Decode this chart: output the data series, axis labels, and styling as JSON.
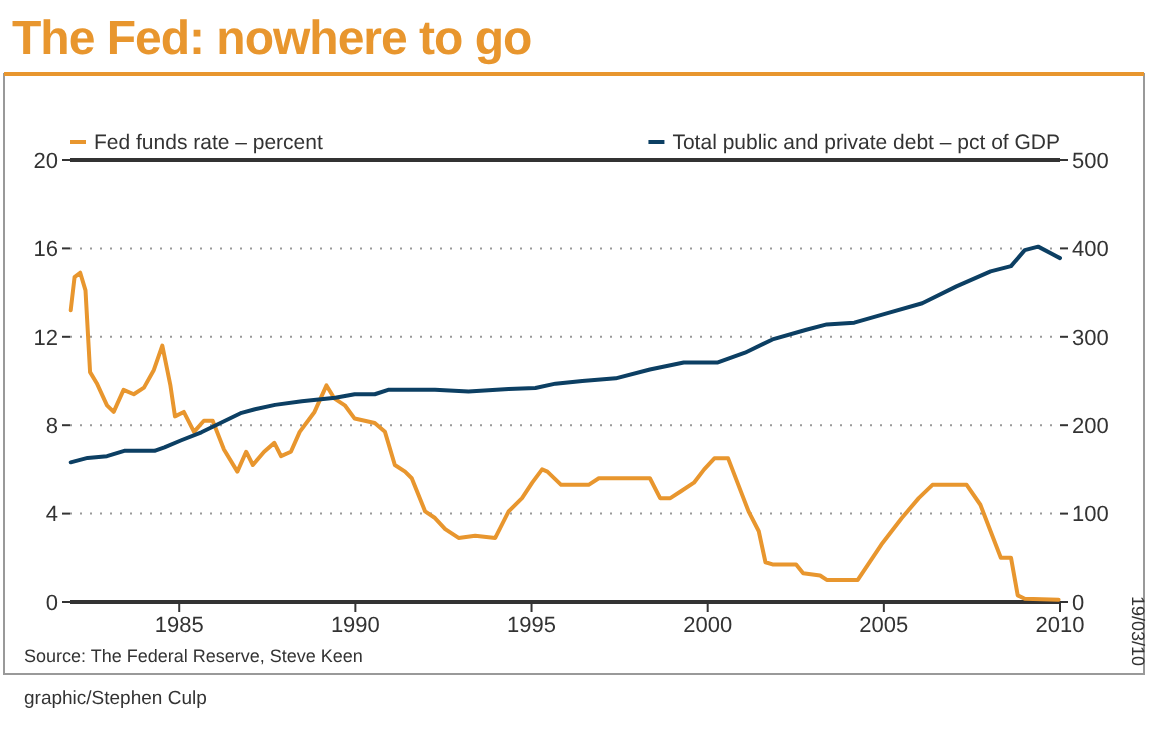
{
  "chart_data": {
    "type": "line",
    "title": "The Fed: nowhere to go",
    "xlim": [
      1981.9,
      2010
    ],
    "xticks": [
      1985,
      1990,
      1995,
      2000,
      2005,
      2010
    ],
    "ylim": [
      0,
      20
    ],
    "yticks": [
      0,
      4,
      8,
      12,
      16,
      20
    ],
    "y2lim": [
      0,
      500
    ],
    "y2ticks": [
      0,
      100,
      200,
      300,
      400,
      500
    ],
    "grid": "y",
    "legend": "top",
    "line_style": "solid",
    "marker": "none",
    "annotations": [
      "Source: The Federal Reserve, Steve Keen",
      "graphic/Stephen Culp",
      "19/03/10"
    ],
    "series": [
      {
        "name": "Fed funds rate – percent",
        "color": "#e8962e",
        "x": [
          1981.92,
          1982.03,
          1982.19,
          1982.34,
          1982.47,
          1982.66,
          1982.95,
          1983.14,
          1983.42,
          1983.71,
          1984.0,
          1984.28,
          1984.52,
          1984.75,
          1984.88,
          1985.13,
          1985.42,
          1985.7,
          1985.95,
          1986.27,
          1986.65,
          1986.9,
          1987.09,
          1987.41,
          1987.7,
          1987.89,
          1988.17,
          1988.42,
          1988.84,
          1989.18,
          1989.41,
          1989.7,
          1989.98,
          1990.55,
          1990.84,
          1991.12,
          1991.41,
          1991.6,
          1991.98,
          1992.26,
          1992.55,
          1992.93,
          1993.4,
          1993.97,
          1994.35,
          1994.73,
          1995.02,
          1995.3,
          1995.45,
          1995.84,
          1996.62,
          1996.91,
          1997.97,
          1998.36,
          1998.65,
          1998.94,
          1999.23,
          1999.61,
          1999.9,
          2000.19,
          2000.58,
          2000.87,
          2001.16,
          2001.45,
          2001.64,
          2001.84,
          2002.51,
          2002.71,
          2003.19,
          2003.38,
          2004.26,
          2004.93,
          2005.51,
          2005.99,
          2006.38,
          2007.35,
          2007.74,
          2008.03,
          2008.32,
          2008.61,
          2008.8,
          2009.0,
          2009.96
        ],
        "values": [
          13.2,
          14.7,
          14.9,
          14.1,
          10.4,
          9.9,
          8.9,
          8.6,
          9.6,
          9.4,
          9.7,
          10.5,
          11.6,
          9.8,
          8.4,
          8.6,
          7.7,
          8.2,
          8.2,
          6.9,
          5.9,
          6.8,
          6.2,
          6.8,
          7.2,
          6.6,
          6.8,
          7.7,
          8.6,
          9.8,
          9.2,
          8.9,
          8.3,
          8.1,
          7.7,
          6.2,
          5.9,
          5.6,
          4.1,
          3.8,
          3.3,
          2.9,
          3.0,
          2.9,
          4.1,
          4.7,
          5.4,
          6.0,
          5.9,
          5.3,
          5.3,
          5.6,
          5.6,
          5.6,
          4.7,
          4.7,
          5.0,
          5.4,
          6.0,
          6.5,
          6.5,
          5.3,
          4.1,
          3.2,
          1.8,
          1.7,
          1.7,
          1.3,
          1.2,
          1.0,
          1.0,
          2.6,
          3.8,
          4.7,
          5.3,
          5.3,
          4.4,
          3.2,
          2.0,
          2.0,
          0.3,
          0.15,
          0.1
        ]
      },
      {
        "name": "Total public and private debt – pct of GDP",
        "color": "#0c3f63",
        "axis": "y2",
        "x": [
          1981.92,
          1982.4,
          1982.95,
          1983.44,
          1984.3,
          1984.58,
          1985.06,
          1985.63,
          1986.2,
          1986.77,
          1987.15,
          1987.72,
          1988.48,
          1989.43,
          1989.98,
          1990.55,
          1990.93,
          1992.26,
          1993.21,
          1994.35,
          1995.11,
          1995.68,
          1996.44,
          1997.39,
          1998.36,
          1999.32,
          2000.29,
          2001.06,
          2001.84,
          2002.8,
          2003.38,
          2004.16,
          2005.13,
          2006.09,
          2007.06,
          2008.03,
          2008.61,
          2009.0,
          2009.38,
          2010.0
        ],
        "values": [
          158,
          163,
          165,
          171,
          171,
          175,
          183,
          192,
          203,
          214,
          218,
          223,
          227,
          231,
          235,
          235,
          240,
          240,
          238,
          241,
          242,
          247,
          250,
          253,
          263,
          271,
          271,
          282,
          297,
          308,
          314,
          316,
          327,
          338,
          357,
          374,
          380,
          398,
          402,
          389
        ]
      }
    ]
  }
}
